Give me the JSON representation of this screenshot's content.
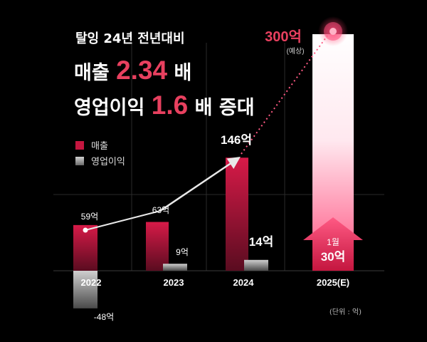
{
  "header": {
    "subtitle": "탈잉 24년 전년대비",
    "line1_prefix": "매출",
    "line1_value": "2.34",
    "line1_suffix": "배",
    "line2_prefix": "영업이익",
    "line2_value": "1.6",
    "line2_suffix": "배 증대"
  },
  "unit_note": "(단위 : 억)",
  "colors": {
    "revenue": "#c4163f",
    "profit": "#9a9a9a",
    "accent": "#e8405f",
    "background": "#000000"
  },
  "chart_data": {
    "type": "bar",
    "categories": [
      "2022",
      "2023",
      "2024",
      "2025(E)"
    ],
    "series": [
      {
        "name": "매출",
        "values": [
          59,
          63,
          146,
          300
        ],
        "labels": [
          "59억",
          "63억",
          "146억",
          "300억"
        ]
      },
      {
        "name": "영업이익",
        "values": [
          -48,
          9,
          14,
          null
        ],
        "labels": [
          "-48억",
          "9억",
          "14억",
          ""
        ]
      }
    ],
    "legend": [
      "매출",
      "영업이익"
    ],
    "legend_position": "top-left",
    "forecast_note": "(예상)",
    "callout": {
      "line1": "1월",
      "line2": "30억"
    },
    "grid": true,
    "ylim": [
      -50,
      310
    ]
  }
}
